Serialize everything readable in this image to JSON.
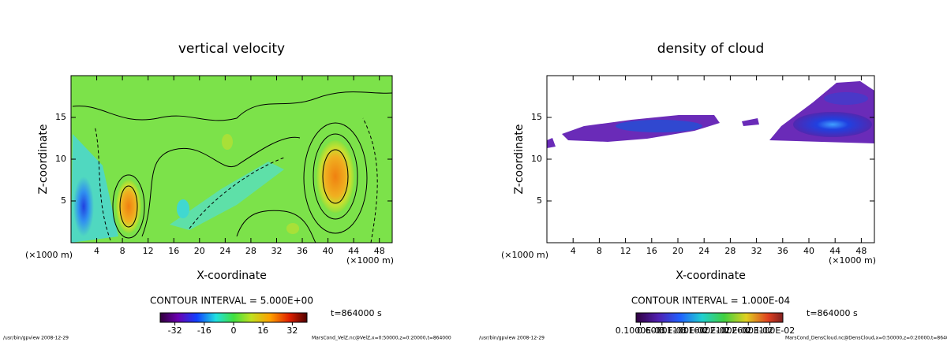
{
  "chart_data": [
    {
      "type": "contour",
      "title": "vertical velocity",
      "xlabel": "X-coordinate",
      "ylabel": "Z-coordinate",
      "xunit_left": "(×1000 m)",
      "xunit_right": "(×1000 m)",
      "xlim": [
        0,
        50
      ],
      "ylim": [
        0,
        20
      ],
      "xticks": [
        4,
        8,
        12,
        16,
        20,
        24,
        28,
        32,
        36,
        40,
        44,
        48
      ],
      "yticks": [
        5,
        10,
        15
      ],
      "contour_interval": "CONTOUR INTERVAL = 5.000E+00",
      "time": "t=864000 s",
      "clim": [
        -40,
        40
      ],
      "colorbar_ticks": [
        -32,
        -16,
        0,
        16,
        32
      ],
      "footer_left": "/usr/bin/gpview  2008-12-29",
      "footer_right": "MarsCond_VelZ.nc@VelZ,x=0:50000,z=0:20000,t=864000"
    },
    {
      "type": "contour",
      "title": "density of cloud",
      "xlabel": "X-coordinate",
      "ylabel": "Z-coordinate",
      "xunit_left": "(×1000 m)",
      "xunit_right": "(×1000 m)",
      "xlim": [
        0,
        50
      ],
      "ylim": [
        0,
        20
      ],
      "xticks": [
        4,
        8,
        12,
        16,
        20,
        24,
        28,
        32,
        36,
        40,
        44,
        48
      ],
      "yticks": [
        5,
        10,
        15
      ],
      "contour_interval": "CONTOUR INTERVAL = 1.000E-04",
      "time": "t=864000 s",
      "clim": [
        0,
        0.0034
      ],
      "colorbar_ticks": [
        {
          "value": 0.0001,
          "label": "0.1000E-03"
        },
        {
          "value": 0.0006,
          "label": "0.6000E-03"
        },
        {
          "value": 0.0011,
          "label": "0.1100E-02"
        },
        {
          "value": 0.0016,
          "label": "0.1600E-02"
        },
        {
          "value": 0.0021,
          "label": "0.2100E-02"
        },
        {
          "value": 0.0026,
          "label": "0.2600E-02"
        },
        {
          "value": 0.0031,
          "label": "0.3100E-02"
        }
      ],
      "footer_left": "/usr/bin/gpview  2008-12-29",
      "footer_right": "MarsCond_DensCloud.nc@DensCloud,x=0:50000,z=0:20000,t=864000"
    }
  ]
}
